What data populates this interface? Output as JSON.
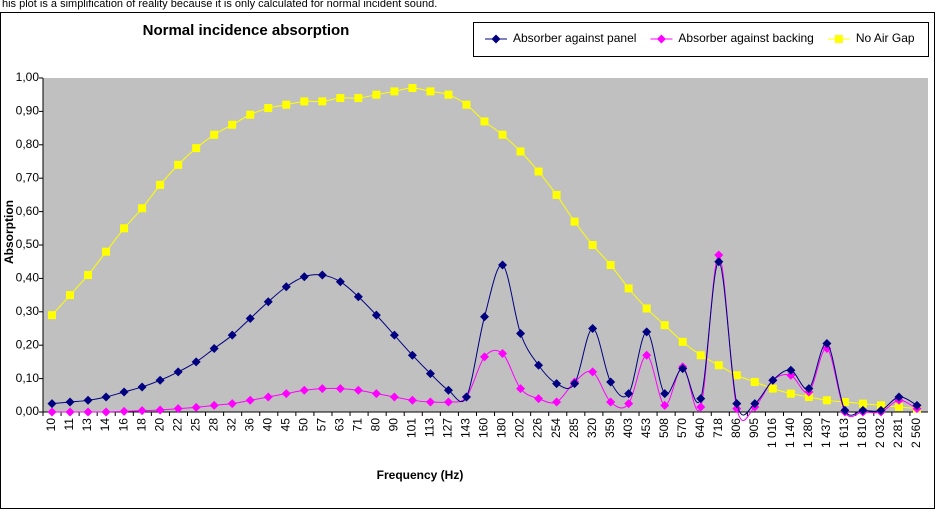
{
  "caption": "his plot is a simplification of reality because it is only calculated for normal incident sound.",
  "chart_data": {
    "type": "line",
    "title": "Normal incidence absorption",
    "x_label": "Frequency (Hz)",
    "y_label": "Absorption",
    "categories": [
      "10",
      "11",
      "13",
      "14",
      "16",
      "18",
      "20",
      "22",
      "25",
      "28",
      "32",
      "36",
      "40",
      "45",
      "50",
      "57",
      "63",
      "71",
      "80",
      "90",
      "101",
      "113",
      "127",
      "143",
      "160",
      "180",
      "202",
      "226",
      "254",
      "285",
      "320",
      "359",
      "403",
      "453",
      "508",
      "570",
      "640",
      "718",
      "806",
      "905",
      "1 016",
      "1 140",
      "1 280",
      "1 437",
      "1 613",
      "1 810",
      "2 032",
      "2 281",
      "2 560"
    ],
    "ylim": [
      0,
      1
    ],
    "yticks": [
      {
        "value": 0,
        "label": "0,00"
      },
      {
        "value": 0.1,
        "label": "0,10"
      },
      {
        "value": 0.2,
        "label": "0,20"
      },
      {
        "value": 0.3,
        "label": "0,30"
      },
      {
        "value": 0.4,
        "label": "0,40"
      },
      {
        "value": 0.5,
        "label": "0,50"
      },
      {
        "value": 0.6,
        "label": "0,60"
      },
      {
        "value": 0.7,
        "label": "0,70"
      },
      {
        "value": 0.8,
        "label": "0,80"
      },
      {
        "value": 0.9,
        "label": "0,90"
      },
      {
        "value": 1,
        "label": "1,00"
      }
    ],
    "grid": false,
    "legend": "top-right",
    "plot_background": "#c0c0c0",
    "series": [
      {
        "name": "Absorber against panel",
        "color": "#000080",
        "marker": "diamond",
        "values": [
          0.025,
          0.03,
          0.035,
          0.045,
          0.06,
          0.075,
          0.095,
          0.12,
          0.15,
          0.19,
          0.23,
          0.28,
          0.33,
          0.375,
          0.405,
          0.41,
          0.39,
          0.345,
          0.29,
          0.23,
          0.17,
          0.115,
          0.065,
          0.045,
          0.285,
          0.44,
          0.235,
          0.14,
          0.085,
          0.085,
          0.25,
          0.09,
          0.055,
          0.24,
          0.055,
          0.13,
          0.04,
          0.45,
          0.025,
          0.025,
          0.095,
          0.125,
          0.07,
          0.205,
          0.005,
          0.005,
          0.005,
          0.045,
          0.02
        ]
      },
      {
        "name": "Absorber against backing",
        "color": "#ff00ff",
        "marker": "diamond",
        "values": [
          0,
          0,
          0,
          0,
          0.002,
          0.004,
          0.006,
          0.01,
          0.014,
          0.02,
          0.025,
          0.035,
          0.045,
          0.055,
          0.065,
          0.07,
          0.07,
          0.065,
          0.055,
          0.045,
          0.035,
          0.03,
          0.03,
          0.045,
          0.165,
          0.175,
          0.07,
          0.04,
          0.03,
          0.09,
          0.12,
          0.03,
          0.025,
          0.17,
          0.02,
          0.135,
          0.015,
          0.47,
          0.01,
          0.015,
          0.095,
          0.11,
          0.06,
          0.19,
          0,
          0,
          0,
          0.035,
          0.01
        ]
      },
      {
        "name": "No Air Gap",
        "color": "#ffff00",
        "marker": "square",
        "values": [
          0.29,
          0.35,
          0.41,
          0.48,
          0.55,
          0.61,
          0.68,
          0.74,
          0.79,
          0.83,
          0.86,
          0.89,
          0.91,
          0.92,
          0.93,
          0.93,
          0.94,
          0.94,
          0.95,
          0.96,
          0.97,
          0.96,
          0.95,
          0.92,
          0.87,
          0.83,
          0.78,
          0.72,
          0.65,
          0.57,
          0.5,
          0.44,
          0.37,
          0.31,
          0.26,
          0.21,
          0.17,
          0.14,
          0.11,
          0.09,
          0.07,
          0.055,
          0.045,
          0.035,
          0.03,
          0.025,
          0.02,
          0.015,
          0.01
        ]
      }
    ]
  }
}
